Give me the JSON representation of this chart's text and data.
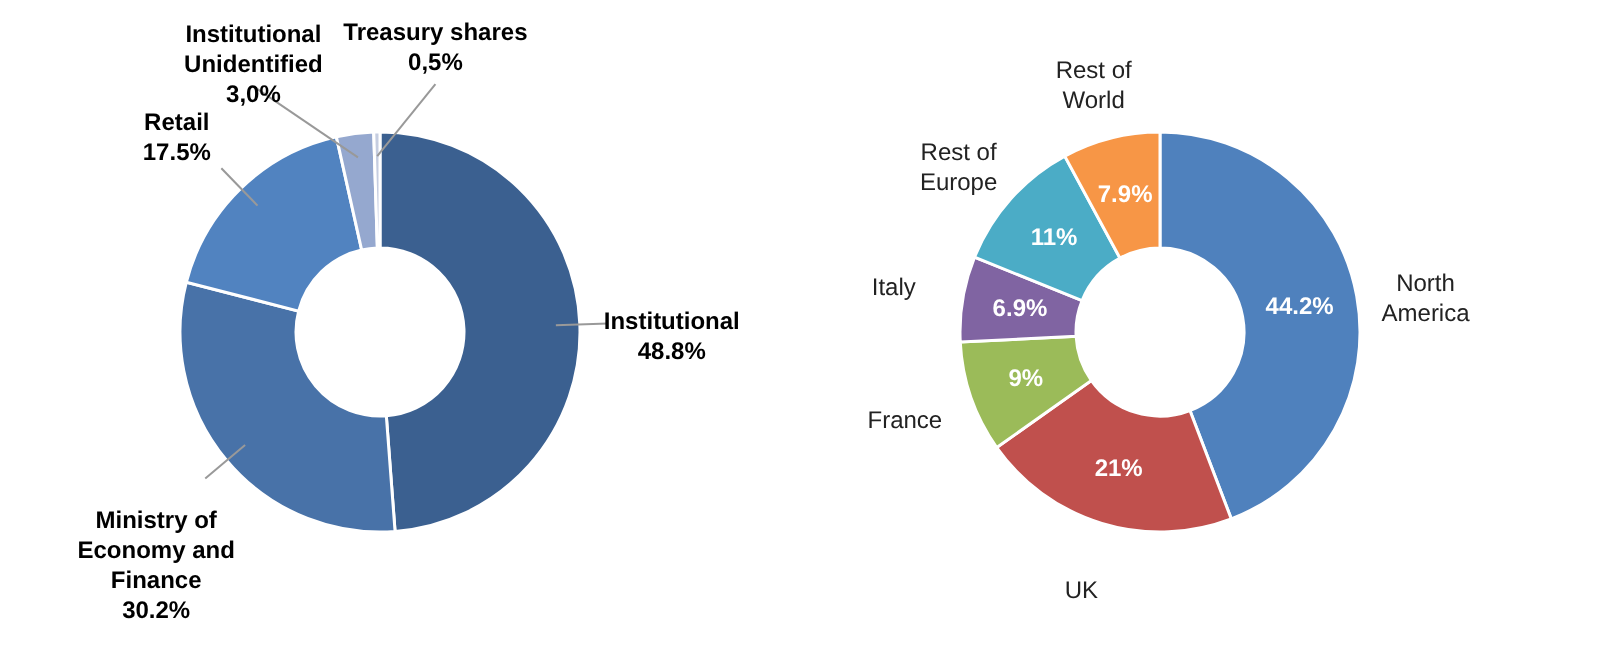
{
  "chart_data": [
    {
      "type": "donut",
      "categories": [
        "Institutional",
        "Ministry of Economy and Finance",
        "Retail",
        "Institutional Unidentified",
        "Treasury shares"
      ],
      "values": [
        48.8,
        30.2,
        17.5,
        3.0,
        0.5
      ],
      "colors": [
        "#3b6090",
        "#4872a8",
        "#5183c0",
        "#95a8cf",
        "#c5cde0"
      ],
      "value_labels": [
        "48.8%",
        "30.2%",
        "17.5%",
        "3,0%",
        "0,5%"
      ],
      "legend": false
    },
    {
      "type": "donut",
      "categories": [
        "North America",
        "UK",
        "France",
        "Italy",
        "Rest of Europe",
        "Rest of World"
      ],
      "values": [
        44.2,
        21,
        9,
        6.9,
        11,
        7.9
      ],
      "colors": [
        "#4f81bd",
        "#c0504d",
        "#9bbb59",
        "#8064a2",
        "#4bacc6",
        "#f79646"
      ],
      "value_labels": [
        "44.2%",
        "21%",
        "9%",
        "6.9%",
        "11%",
        "7.9%"
      ],
      "legend": false
    }
  ]
}
